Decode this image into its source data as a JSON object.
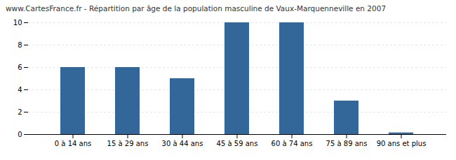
{
  "chart_data": {
    "type": "bar",
    "title": "www.CartesFrance.fr - Répartition par âge de la population masculine de Vaux-Marquenneville en 2007",
    "categories": [
      "0 à 14 ans",
      "15 à 29 ans",
      "30 à 44 ans",
      "45 à 59 ans",
      "60 à 74 ans",
      "75 à 89 ans",
      "90 ans et plus"
    ],
    "values": [
      6,
      6,
      5,
      10,
      10,
      3,
      0.15
    ],
    "color": "#336699",
    "ylim": [
      0,
      10
    ],
    "yticks": [
      0,
      2,
      4,
      6,
      8,
      10
    ],
    "grid": true
  }
}
